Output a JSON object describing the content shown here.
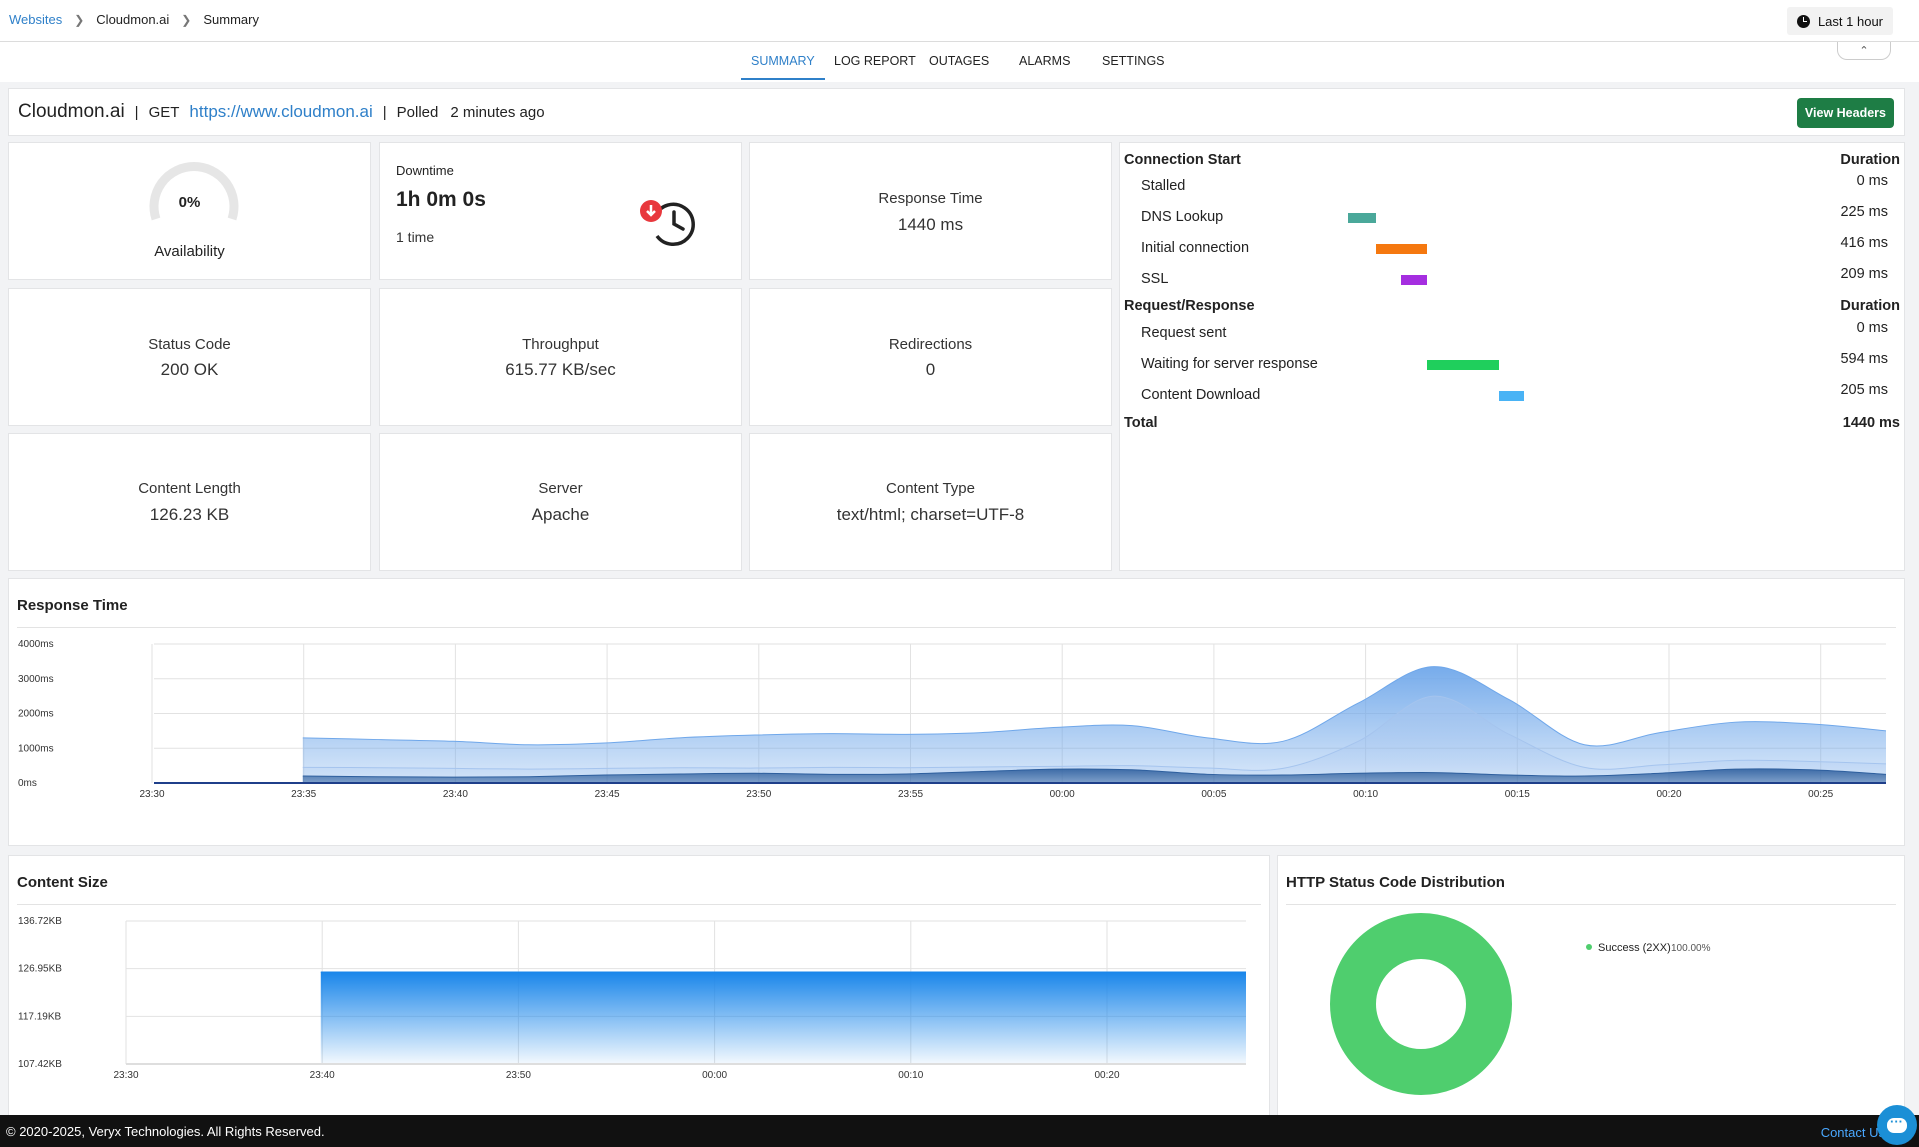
{
  "breadcrumb": {
    "root": "Websites",
    "site": "Cloudmon.ai",
    "page": "Summary"
  },
  "time_range": {
    "label": "Last 1 hour",
    "icon": "clock-icon"
  },
  "tabs": [
    {
      "label": "SUMMARY",
      "active": true
    },
    {
      "label": "LOG REPORT",
      "active": false
    },
    {
      "label": "OUTAGES",
      "active": false
    },
    {
      "label": "ALARMS",
      "active": false
    },
    {
      "label": "SETTINGS",
      "active": false
    }
  ],
  "monitor": {
    "name": "Cloudmon.ai",
    "method": "GET",
    "url": "https://www.cloudmon.ai",
    "polled_label": "Polled",
    "polled_value": "2 minutes ago",
    "view_headers": "View Headers"
  },
  "metrics": {
    "availability": {
      "value": "0%",
      "label": "Availability",
      "fraction": 0
    },
    "downtime": {
      "label": "Downtime",
      "value": "1h 0m 0s",
      "count": "1 time"
    },
    "response_time": {
      "label": "Response Time",
      "value": "1440 ms"
    },
    "status_code": {
      "label": "Status Code",
      "value": "200 OK"
    },
    "throughput": {
      "label": "Throughput",
      "value": "615.77 KB/sec"
    },
    "redirections": {
      "label": "Redirections",
      "value": "0"
    },
    "content_length": {
      "label": "Content Length",
      "value": "126.23 KB"
    },
    "server": {
      "label": "Server",
      "value": "Apache"
    },
    "content_type": {
      "label": "Content Type",
      "value": "text/html; charset=UTF-8"
    }
  },
  "waterfall": {
    "connection_header": "Connection Start",
    "request_header": "Request/Response",
    "duration_header": "Duration",
    "connection": [
      {
        "label": "Stalled",
        "duration": "0 ms",
        "start": 0,
        "ms": 0,
        "color": "#4aa89a"
      },
      {
        "label": "DNS Lookup",
        "duration": "225 ms",
        "start": 0,
        "ms": 225,
        "color": "#4aa89a"
      },
      {
        "label": "Initial connection",
        "duration": "416 ms",
        "start": 225,
        "ms": 416,
        "color": "#f5780f"
      },
      {
        "label": "SSL",
        "duration": "209 ms",
        "start": 432,
        "ms": 209,
        "color": "#a52ee0"
      }
    ],
    "request": [
      {
        "label": "Request sent",
        "duration": "0 ms",
        "start": 641,
        "ms": 0,
        "color": "#1fcf5c"
      },
      {
        "label": "Waiting for server response",
        "duration": "594 ms",
        "start": 641,
        "ms": 594,
        "color": "#1fcf5c"
      },
      {
        "label": "Content Download",
        "duration": "205 ms",
        "start": 1235,
        "ms": 205,
        "color": "#49b3f5"
      }
    ],
    "total_label": "Total",
    "total_value": "1440 ms"
  },
  "response_chart": {
    "title": "Response Time",
    "chart_data": {
      "type": "area",
      "y_ticks": [
        "0ms",
        "1000ms",
        "2000ms",
        "3000ms",
        "4000ms"
      ],
      "ylim": [
        0,
        4000
      ],
      "x_ticks": [
        "23:30",
        "23:35",
        "23:40",
        "23:45",
        "23:50",
        "23:55",
        "00:00",
        "00:05",
        "00:10",
        "00:15",
        "00:20",
        "00:25"
      ],
      "x_minutes": [
        0,
        2.5,
        5,
        7.5,
        10,
        12.5,
        15,
        17.5,
        20,
        22.5,
        25,
        27.5,
        30,
        32.5,
        35,
        37.5,
        40,
        42.5,
        45,
        47.5,
        50,
        52.5,
        55,
        57.5
      ],
      "series": [
        {
          "values": [
            null,
            null,
            1300,
            1250,
            1200,
            1100,
            1150,
            1300,
            1380,
            1420,
            1400,
            1450,
            1600,
            1650,
            1300,
            1200,
            2300,
            3350,
            2400,
            1100,
            1450,
            1750,
            1700,
            1500
          ],
          "color": "#6fa7ea"
        },
        {
          "values": [
            null,
            null,
            450,
            440,
            420,
            400,
            420,
            440,
            430,
            450,
            440,
            460,
            480,
            500,
            430,
            420,
            1200,
            2500,
            1400,
            450,
            520,
            650,
            620,
            550
          ],
          "color": "#a5c4ee"
        },
        {
          "values": [
            null,
            null,
            200,
            180,
            170,
            180,
            230,
            260,
            280,
            250,
            260,
            330,
            400,
            380,
            250,
            230,
            280,
            300,
            230,
            200,
            280,
            400,
            380,
            250
          ],
          "color": "#2e5f9e"
        }
      ]
    }
  },
  "content_chart": {
    "title": "Content Size",
    "chart_data": {
      "type": "area",
      "y_ticks": [
        "107.42KB",
        "117.19KB",
        "126.95KB",
        "136.72KB"
      ],
      "ylim": [
        107.42,
        136.72
      ],
      "x_ticks": [
        "23:30",
        "23:40",
        "23:50",
        "00:00",
        "00:10",
        "00:20"
      ],
      "x_minutes": [
        0,
        10,
        20,
        30,
        40,
        50,
        57.5
      ],
      "series": [
        {
          "values": [
            null,
            126.23,
            126.23,
            126.23,
            126.23,
            126.23,
            126.23
          ],
          "color": "#1a86ea"
        }
      ]
    }
  },
  "status_chart": {
    "title": "HTTP Status Code Distribution",
    "chart_data": {
      "type": "pie",
      "slices": [
        {
          "label": "Success (2XX)",
          "value": 100,
          "percent": "100.00%",
          "color": "#4fce6e"
        }
      ]
    }
  },
  "footer": {
    "copyright": "© 2020-2025, Veryx Technologies. All Rights Reserved.",
    "contact": "Contact Us"
  }
}
